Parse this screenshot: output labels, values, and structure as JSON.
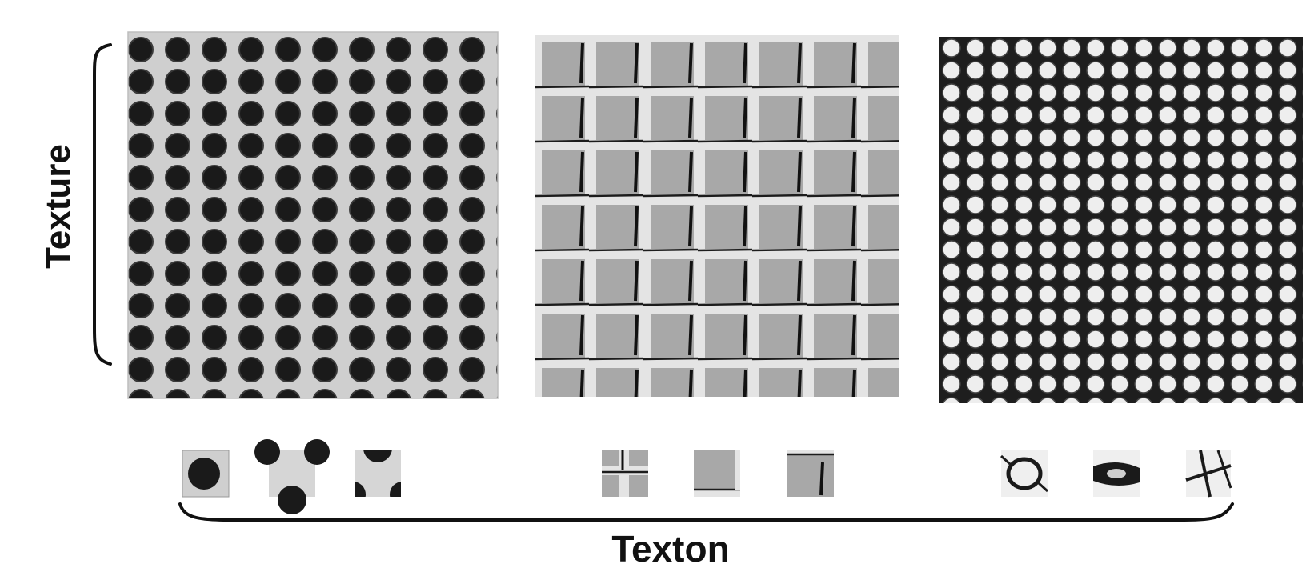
{
  "labels": {
    "texture": "Texture",
    "texton": "Texton"
  },
  "textures": [
    {
      "pattern": "dot-grid-icon"
    },
    {
      "pattern": "brick-tile-icon"
    },
    {
      "pattern": "cell-mesh-icon"
    }
  ],
  "textons": [
    {
      "texture_index": 0,
      "pattern": "single-dot-icon"
    },
    {
      "texture_index": 0,
      "pattern": "dot-gap-icon"
    },
    {
      "texture_index": 0,
      "pattern": "dot-pair-icon"
    },
    {
      "texture_index": 1,
      "pattern": "tile-junction-icon"
    },
    {
      "texture_index": 1,
      "pattern": "tile-corner-icon"
    },
    {
      "texture_index": 1,
      "pattern": "tile-edge-icon"
    },
    {
      "texture_index": 2,
      "pattern": "cell-ring-icon"
    },
    {
      "texture_index": 2,
      "pattern": "cell-band-icon"
    },
    {
      "texture_index": 2,
      "pattern": "cell-node-icon"
    }
  ],
  "colors": {
    "ink": "#111111",
    "dot_bg": "#cfcfcf",
    "tile": "#a9a9a9",
    "grout": "#e6e6e6",
    "mesh_bg": "#f2f2f2"
  }
}
